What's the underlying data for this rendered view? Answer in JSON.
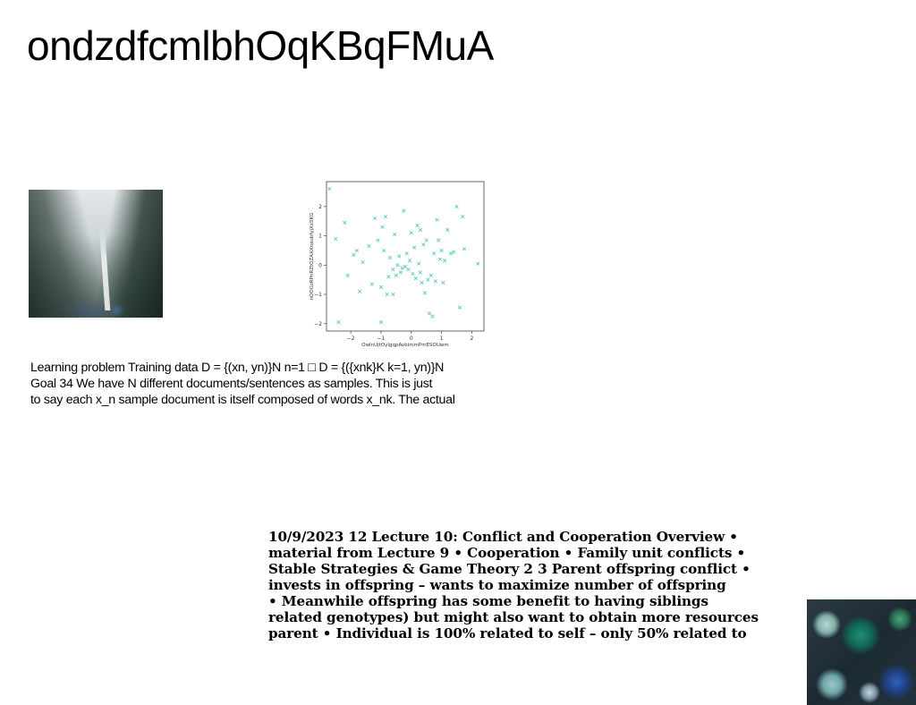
{
  "title": "ondzdfcmlbhOqKBqFMuA",
  "images": {
    "mist": "misty-waterfall-photo",
    "bowls": "food-bowls-photo"
  },
  "text_block_1": {
    "lines": [
      "Learning problem Training data D = {(xn, yn)}N n=1 □ D = {({xnk}K k=1, yn)}N",
      "Goal 34 We have N different documents/sentences as samples. This is just",
      "to say each x_n sample document is itself composed of words x_nk. The actual"
    ]
  },
  "text_block_2": {
    "lines": [
      "10/9/2023 12 Lecture 10: Conflict and Cooperation Overview •",
      "material from Lecture 9 • Cooperation • Family unit conflicts •",
      "Stable Strategies & Game Theory 2 3 Parent offspring conflict •",
      "invests in offspring – wants to maximize number of offspring",
      "• Meanwhile offspring has some benefit to having siblings",
      "related genotypes) but might also want to obtain more resources",
      "parent • Individual is 100% related to self – only 50% related to"
    ]
  },
  "chart_data": {
    "type": "scatter",
    "xlabel": "OwlnUjtOyIgqpAvbimmPmESOUwm",
    "ylabel": "nQOGzRPnRZtQZAXXnaubfyjXxSKG",
    "xlim": [
      -2.8,
      2.4
    ],
    "ylim": [
      -2.25,
      2.85
    ],
    "xticks": [
      -2,
      -1,
      0,
      1,
      2
    ],
    "yticks": [
      -2,
      -1,
      0,
      1,
      2
    ],
    "xtick_labels": [
      "−2",
      "−1",
      "0",
      "1",
      "2"
    ],
    "ytick_labels": [
      "−2",
      "−1",
      "0",
      "1",
      "2"
    ],
    "marker": "x",
    "color": "#5fc7c3",
    "x": [
      -2.7,
      -2.5,
      -2.4,
      -2.2,
      -2.1,
      -1.9,
      -1.8,
      -1.7,
      -1.6,
      -1.4,
      -1.3,
      -1.2,
      -1.1,
      -1.0,
      -0.95,
      -0.9,
      -0.85,
      -0.8,
      -0.75,
      -0.7,
      -0.6,
      -0.55,
      -0.5,
      -0.45,
      -0.4,
      -0.35,
      -0.3,
      -0.25,
      -0.2,
      -0.15,
      -0.1,
      -0.05,
      0.0,
      0.05,
      0.1,
      0.15,
      0.2,
      0.25,
      0.3,
      0.35,
      0.4,
      0.45,
      0.5,
      0.55,
      0.6,
      0.65,
      0.7,
      0.75,
      0.8,
      0.85,
      0.9,
      0.95,
      1.0,
      1.05,
      1.1,
      1.2,
      1.3,
      1.4,
      1.5,
      1.6,
      1.7,
      1.75,
      2.2,
      -1.0,
      0.3,
      -0.6
    ],
    "y": [
      2.6,
      0.9,
      -1.95,
      1.45,
      -0.35,
      0.35,
      0.5,
      -0.9,
      0.1,
      0.65,
      -0.65,
      1.6,
      0.85,
      -0.75,
      1.3,
      0.5,
      1.65,
      -1.0,
      -0.4,
      0.25,
      -0.15,
      1.05,
      -0.35,
      0.0,
      0.3,
      -0.25,
      -0.1,
      1.85,
      -0.05,
      0.4,
      -0.15,
      0.15,
      1.1,
      -0.3,
      0.6,
      -0.45,
      1.35,
      0.05,
      1.2,
      -0.6,
      0.7,
      -0.95,
      0.85,
      -0.5,
      -1.65,
      -0.35,
      -1.75,
      0.4,
      -0.55,
      1.55,
      0.85,
      0.2,
      0.5,
      -0.6,
      0.15,
      1.2,
      0.4,
      0.45,
      2.0,
      -1.45,
      1.65,
      0.55,
      0.05,
      -1.95,
      -0.25,
      -1.0
    ]
  }
}
